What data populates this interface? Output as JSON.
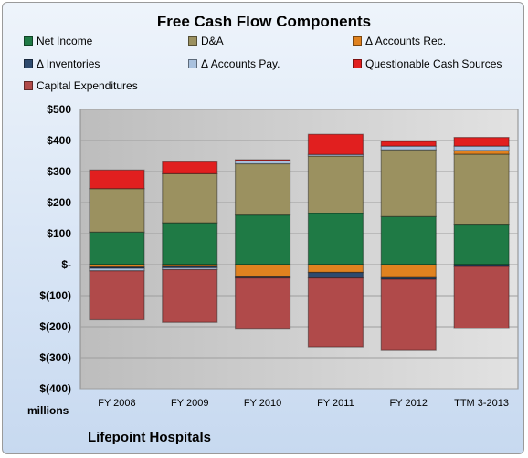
{
  "chart_data": {
    "type": "bar",
    "stacked": true,
    "title": "Free Cash Flow Components",
    "xlabel": "",
    "ylabel": "",
    "y_unit_label": "millions",
    "company": "Lifepoint Hospitals",
    "ylim": [
      -400,
      500
    ],
    "ytick_values": [
      500,
      400,
      300,
      200,
      100,
      0,
      -100,
      -200,
      -300,
      -400
    ],
    "ytick_labels": [
      "$500",
      "$400",
      "$300",
      "$200",
      "$100",
      "$-",
      "$(100)",
      "$(200)",
      "$(300)",
      "$(400)"
    ],
    "categories": [
      "FY 2008",
      "FY 2009",
      "FY 2010",
      "FY 2011",
      "FY 2012",
      "TTM 3-2013"
    ],
    "grid": true,
    "legend_position": "top",
    "series": [
      {
        "name": "Net Income",
        "color": "#1f7a45",
        "values": [
          105,
          135,
          160,
          165,
          155,
          128
        ]
      },
      {
        "name": "D&A",
        "color": "#9b9160",
        "values": [
          140,
          158,
          165,
          185,
          215,
          228
        ]
      },
      {
        "name": "Δ Accounts Rec.",
        "color": "#e0821f",
        "values": [
          -8,
          -6,
          -40,
          -25,
          -42,
          12
        ]
      },
      {
        "name": "Δ Inventories",
        "color": "#2e4a6e",
        "values": [
          -4,
          -4,
          -3,
          -18,
          -5,
          -6
        ]
      },
      {
        "name": "Δ Accounts Pay.",
        "color": "#a9c1de",
        "values": [
          -8,
          -6,
          10,
          5,
          12,
          14
        ]
      },
      {
        "name": "Questionable Cash Sources",
        "color": "#e11f1f",
        "values": [
          60,
          38,
          3,
          65,
          15,
          28
        ]
      },
      {
        "name": "Capital Expenditures",
        "color": "#b04a4a",
        "values": [
          -158,
          -170,
          -165,
          -222,
          -230,
          -200
        ]
      }
    ]
  }
}
